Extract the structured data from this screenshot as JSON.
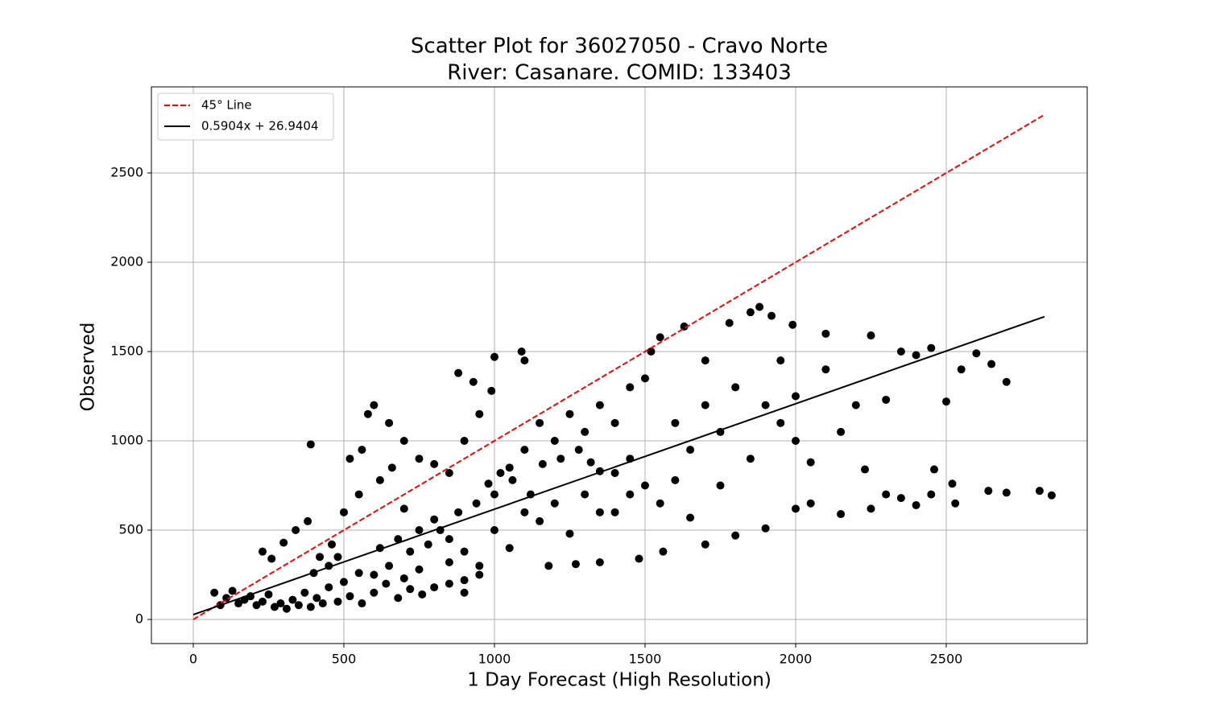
{
  "chart_data": {
    "type": "scatter",
    "title": [
      "Scatter Plot for 36027050 - Cravo Norte",
      "River: Casanare. COMID: 133403"
    ],
    "xlabel": "1 Day Forecast (High Resolution)",
    "ylabel": "Observed",
    "xlim": [
      -139,
      2968
    ],
    "ylim": [
      -135,
      2982
    ],
    "xticks": [
      0,
      500,
      1000,
      1500,
      2000,
      2500
    ],
    "yticks": [
      0,
      500,
      1000,
      1500,
      2000,
      2500
    ],
    "grid": true,
    "legend": "upper left",
    "lines": [
      {
        "name": "45° Line",
        "color": "#ff0000",
        "dashed": true,
        "x": [
          0,
          2826
        ],
        "y": [
          0,
          2826
        ]
      },
      {
        "name": "0.5904x + 26.9404",
        "color": "#000000",
        "dashed": false,
        "x": [
          0,
          2826
        ],
        "y": [
          26.94,
          1695.4
        ]
      }
    ],
    "points": {
      "color": "#000000",
      "x": [
        70,
        90,
        110,
        130,
        150,
        170,
        190,
        210,
        230,
        250,
        270,
        290,
        310,
        330,
        350,
        370,
        390,
        410,
        430,
        450,
        480,
        520,
        560,
        600,
        640,
        680,
        720,
        760,
        800,
        850,
        900,
        950,
        230,
        260,
        300,
        340,
        380,
        420,
        460,
        500,
        550,
        580,
        600,
        650,
        520,
        560,
        620,
        660,
        700,
        750,
        800,
        850,
        900,
        950,
        1000,
        1090,
        1100,
        880,
        930,
        990,
        390,
        700,
        750,
        800,
        850,
        900,
        950,
        1000,
        1050,
        1100,
        1150,
        1200,
        1250,
        1300,
        1350,
        1400,
        1450,
        1500,
        1550,
        1520,
        1630,
        1700,
        1780,
        1850,
        1880,
        1920,
        1990,
        2100,
        1000,
        1050,
        1100,
        1150,
        1200,
        1250,
        1300,
        1350,
        1400,
        1450,
        1500,
        1550,
        1600,
        1650,
        1700,
        1750,
        1800,
        1900,
        1850,
        1950,
        2000,
        2050,
        2100,
        2150,
        2200,
        2250,
        2300,
        2350,
        2400,
        2450,
        2500,
        2550,
        2600,
        2650,
        2700,
        1480,
        1560,
        1350,
        1180,
        1270,
        2000,
        2050,
        2150,
        2250,
        2300,
        2350,
        2400,
        2450,
        2530,
        2520,
        2640,
        2700,
        2810,
        2850,
        2230,
        2460,
        1900,
        1800,
        1700,
        1600,
        1650,
        1750,
        2000,
        1950,
        1450,
        1350,
        1400,
        600,
        650,
        700,
        750,
        850,
        900,
        550,
        500,
        450,
        400,
        480,
        620,
        680,
        720,
        780,
        820,
        880,
        940,
        980,
        1020,
        1060,
        1120,
        1160,
        1220,
        1280,
        1320
      ],
      "y": [
        150,
        80,
        120,
        160,
        90,
        110,
        130,
        80,
        100,
        140,
        70,
        90,
        60,
        110,
        80,
        150,
        70,
        120,
        90,
        180,
        100,
        130,
        90,
        150,
        200,
        120,
        170,
        140,
        180,
        200,
        150,
        250,
        380,
        340,
        430,
        500,
        550,
        350,
        420,
        600,
        700,
        1150,
        1200,
        1100,
        900,
        950,
        780,
        850,
        1000,
        900,
        870,
        820,
        1000,
        1150,
        1470,
        1500,
        1450,
        1380,
        1330,
        1280,
        980,
        620,
        500,
        560,
        450,
        380,
        300,
        700,
        850,
        950,
        1100,
        1000,
        1150,
        1050,
        1200,
        1100,
        1300,
        1350,
        1580,
        1500,
        1640,
        1450,
        1660,
        1720,
        1750,
        1700,
        1650,
        1600,
        500,
        400,
        600,
        550,
        650,
        480,
        700,
        600,
        820,
        700,
        750,
        650,
        780,
        570,
        420,
        750,
        470,
        510,
        900,
        1100,
        1000,
        880,
        1400,
        1050,
        1200,
        1590,
        1230,
        1500,
        1480,
        1520,
        1220,
        1400,
        1490,
        1430,
        1330,
        340,
        380,
        320,
        300,
        310,
        620,
        650,
        590,
        620,
        700,
        680,
        640,
        700,
        650,
        760,
        720,
        710,
        720,
        695,
        840,
        840,
        1200,
        1300,
        1200,
        1100,
        950,
        1050,
        1250,
        1450,
        900,
        830,
        600,
        250,
        300,
        230,
        280,
        320,
        220,
        260,
        210,
        300,
        260,
        350,
        400,
        450,
        380,
        420,
        500,
        600,
        650,
        760,
        820,
        780,
        700,
        870,
        900,
        950,
        880
      ]
    }
  }
}
